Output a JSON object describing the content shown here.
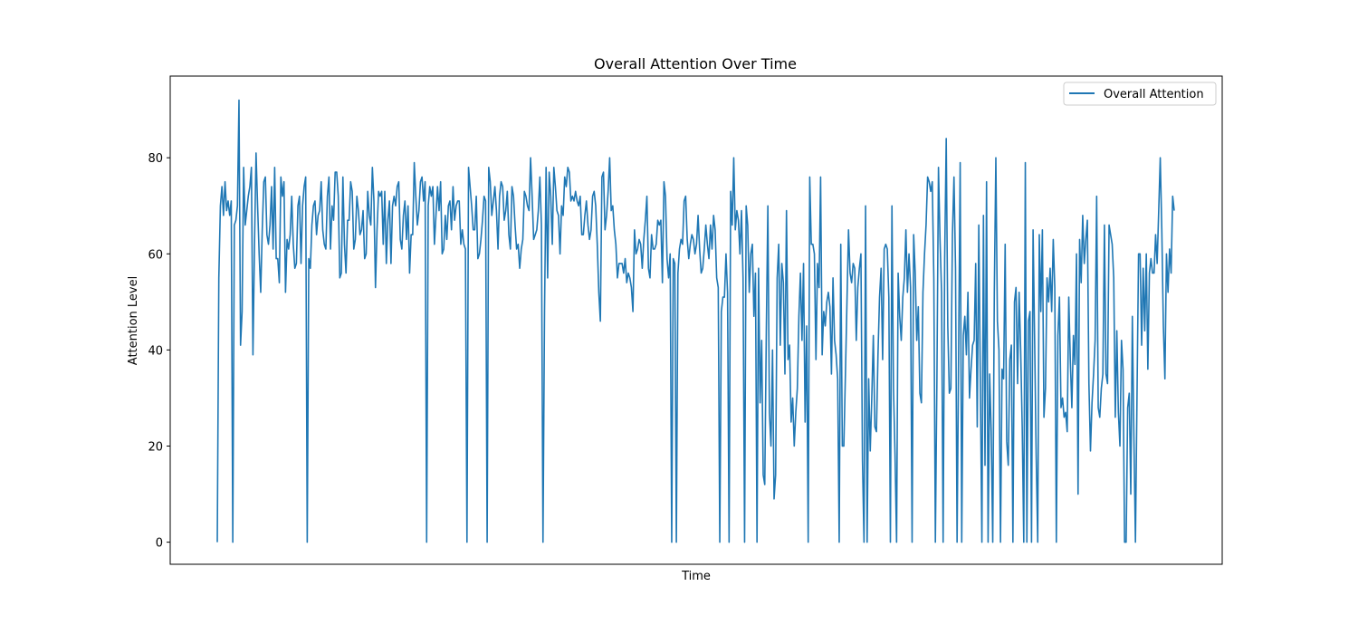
{
  "chart_data": {
    "type": "line",
    "title": "Overall Attention Over Time",
    "xlabel": "Time",
    "ylabel": "Attention Level",
    "ylim": [
      -4.6,
      97.0
    ],
    "yticks": [
      0,
      20,
      40,
      60,
      80
    ],
    "grid": false,
    "legend": "top-right",
    "series": [
      {
        "name": "Overall Attention",
        "color": "#1f77b4",
        "values": [
          0,
          55,
          70,
          74,
          68,
          75,
          69,
          71,
          68,
          71,
          0,
          66,
          67,
          70,
          92,
          41,
          48,
          78,
          66,
          69,
          72,
          74,
          78,
          39,
          62,
          81,
          70,
          60,
          52,
          65,
          75,
          76,
          64,
          62,
          66,
          74,
          61,
          78,
          59,
          59,
          54,
          76,
          72,
          75,
          52,
          63,
          61,
          64,
          72,
          62,
          57,
          58,
          70,
          72,
          58,
          70,
          74,
          76,
          0,
          59,
          57,
          66,
          70,
          71,
          64,
          68,
          69,
          75,
          65,
          62,
          61,
          72,
          76,
          61,
          70,
          67,
          77,
          77,
          72,
          55,
          56,
          76,
          62,
          56,
          67,
          67,
          75,
          73,
          61,
          63,
          72,
          69,
          64,
          65,
          69,
          59,
          60,
          73,
          68,
          66,
          78,
          71,
          53,
          65,
          73,
          72,
          73,
          62,
          73,
          58,
          67,
          71,
          58,
          70,
          72,
          70,
          74,
          75,
          63,
          61,
          68,
          71,
          63,
          70,
          56,
          64,
          64,
          79,
          72,
          66,
          69,
          75,
          76,
          71,
          75,
          0,
          70,
          74,
          72,
          74,
          62,
          68,
          74,
          69,
          75,
          60,
          61,
          68,
          63,
          70,
          71,
          65,
          74,
          67,
          70,
          71,
          71,
          62,
          65,
          62,
          61,
          0,
          78,
          74,
          70,
          65,
          65,
          72,
          59,
          60,
          63,
          67,
          72,
          71,
          0,
          78,
          75,
          68,
          71,
          74,
          69,
          61,
          72,
          75,
          74,
          67,
          69,
          73,
          64,
          61,
          74,
          72,
          66,
          61,
          62,
          57,
          61,
          63,
          73,
          72,
          70,
          69,
          80,
          72,
          63,
          64,
          65,
          69,
          76,
          66,
          0,
          48,
          78,
          55,
          77,
          72,
          62,
          78,
          74,
          69,
          68,
          60,
          70,
          68,
          76,
          74,
          78,
          77,
          71,
          72,
          71,
          73,
          71,
          70,
          72,
          64,
          64,
          68,
          71,
          66,
          63,
          65,
          72,
          73,
          70,
          62,
          52,
          46,
          76,
          77,
          65,
          68,
          73,
          80,
          69,
          70,
          65,
          62,
          55,
          58,
          58,
          58,
          56,
          59,
          54,
          56,
          55,
          53,
          48,
          65,
          60,
          61,
          63,
          62,
          57,
          63,
          67,
          72,
          57,
          55,
          64,
          61,
          61,
          62,
          67,
          66,
          67,
          54,
          75,
          72,
          59,
          55,
          60,
          0,
          59,
          58,
          0,
          56,
          61,
          63,
          62,
          71,
          72,
          63,
          59,
          62,
          64,
          63,
          60,
          62,
          68,
          61,
          56,
          57,
          61,
          66,
          62,
          59,
          66,
          61,
          68,
          65,
          55,
          53,
          0,
          48,
          51,
          51,
          60,
          52,
          0,
          73,
          66,
          80,
          65,
          69,
          67,
          60,
          69,
          55,
          0,
          70,
          66,
          52,
          60,
          62,
          47,
          56,
          0,
          57,
          29,
          42,
          14,
          12,
          44,
          70,
          27,
          20,
          40,
          9,
          14,
          55,
          62,
          41,
          58,
          54,
          35,
          69,
          38,
          41,
          25,
          30,
          20,
          27,
          32,
          47,
          56,
          42,
          58,
          25,
          45,
          0,
          76,
          62,
          62,
          60,
          38,
          58,
          53,
          76,
          39,
          48,
          45,
          50,
          52,
          49,
          35,
          55,
          42,
          39,
          34,
          0,
          62,
          20,
          20,
          35,
          50,
          65,
          56,
          54,
          58,
          57,
          42,
          53,
          57,
          60,
          17,
          0,
          70,
          0,
          34,
          19,
          30,
          43,
          24,
          23,
          39,
          51,
          57,
          38,
          61,
          62,
          61,
          51,
          0,
          70,
          32,
          18,
          0,
          56,
          47,
          42,
          51,
          55,
          65,
          52,
          60,
          53,
          0,
          64,
          56,
          42,
          49,
          31,
          29,
          52,
          60,
          66,
          76,
          75,
          73,
          75,
          55,
          0,
          34,
          78,
          63,
          52,
          0,
          59,
          84,
          45,
          31,
          32,
          64,
          76,
          57,
          0,
          40,
          79,
          0,
          43,
          47,
          39,
          52,
          30,
          36,
          41,
          42,
          58,
          24,
          66,
          33,
          0,
          68,
          16,
          75,
          0,
          35,
          23,
          0,
          52,
          80,
          46,
          40,
          0,
          36,
          34,
          62,
          21,
          16,
          38,
          41,
          0,
          50,
          53,
          33,
          52,
          40,
          24,
          0,
          79,
          0,
          46,
          48,
          0,
          65,
          42,
          18,
          0,
          64,
          48,
          65,
          26,
          32,
          55,
          50,
          57,
          48,
          63,
          53,
          0,
          43,
          51,
          28,
          30,
          26,
          27,
          23,
          51,
          38,
          28,
          43,
          37,
          60,
          10,
          63,
          54,
          68,
          58,
          63,
          67,
          33,
          19,
          29,
          35,
          42,
          72,
          28,
          26,
          32,
          35,
          66,
          35,
          33,
          66,
          64,
          62,
          55,
          26,
          44,
          27,
          20,
          42,
          36,
          0,
          0,
          28,
          31,
          10,
          47,
          22,
          0,
          30,
          60,
          60,
          41,
          57,
          44,
          60,
          36,
          56,
          59,
          56,
          56,
          64,
          58,
          69,
          80,
          65,
          45,
          34,
          60,
          52,
          61,
          56,
          72,
          69
        ]
      }
    ]
  }
}
